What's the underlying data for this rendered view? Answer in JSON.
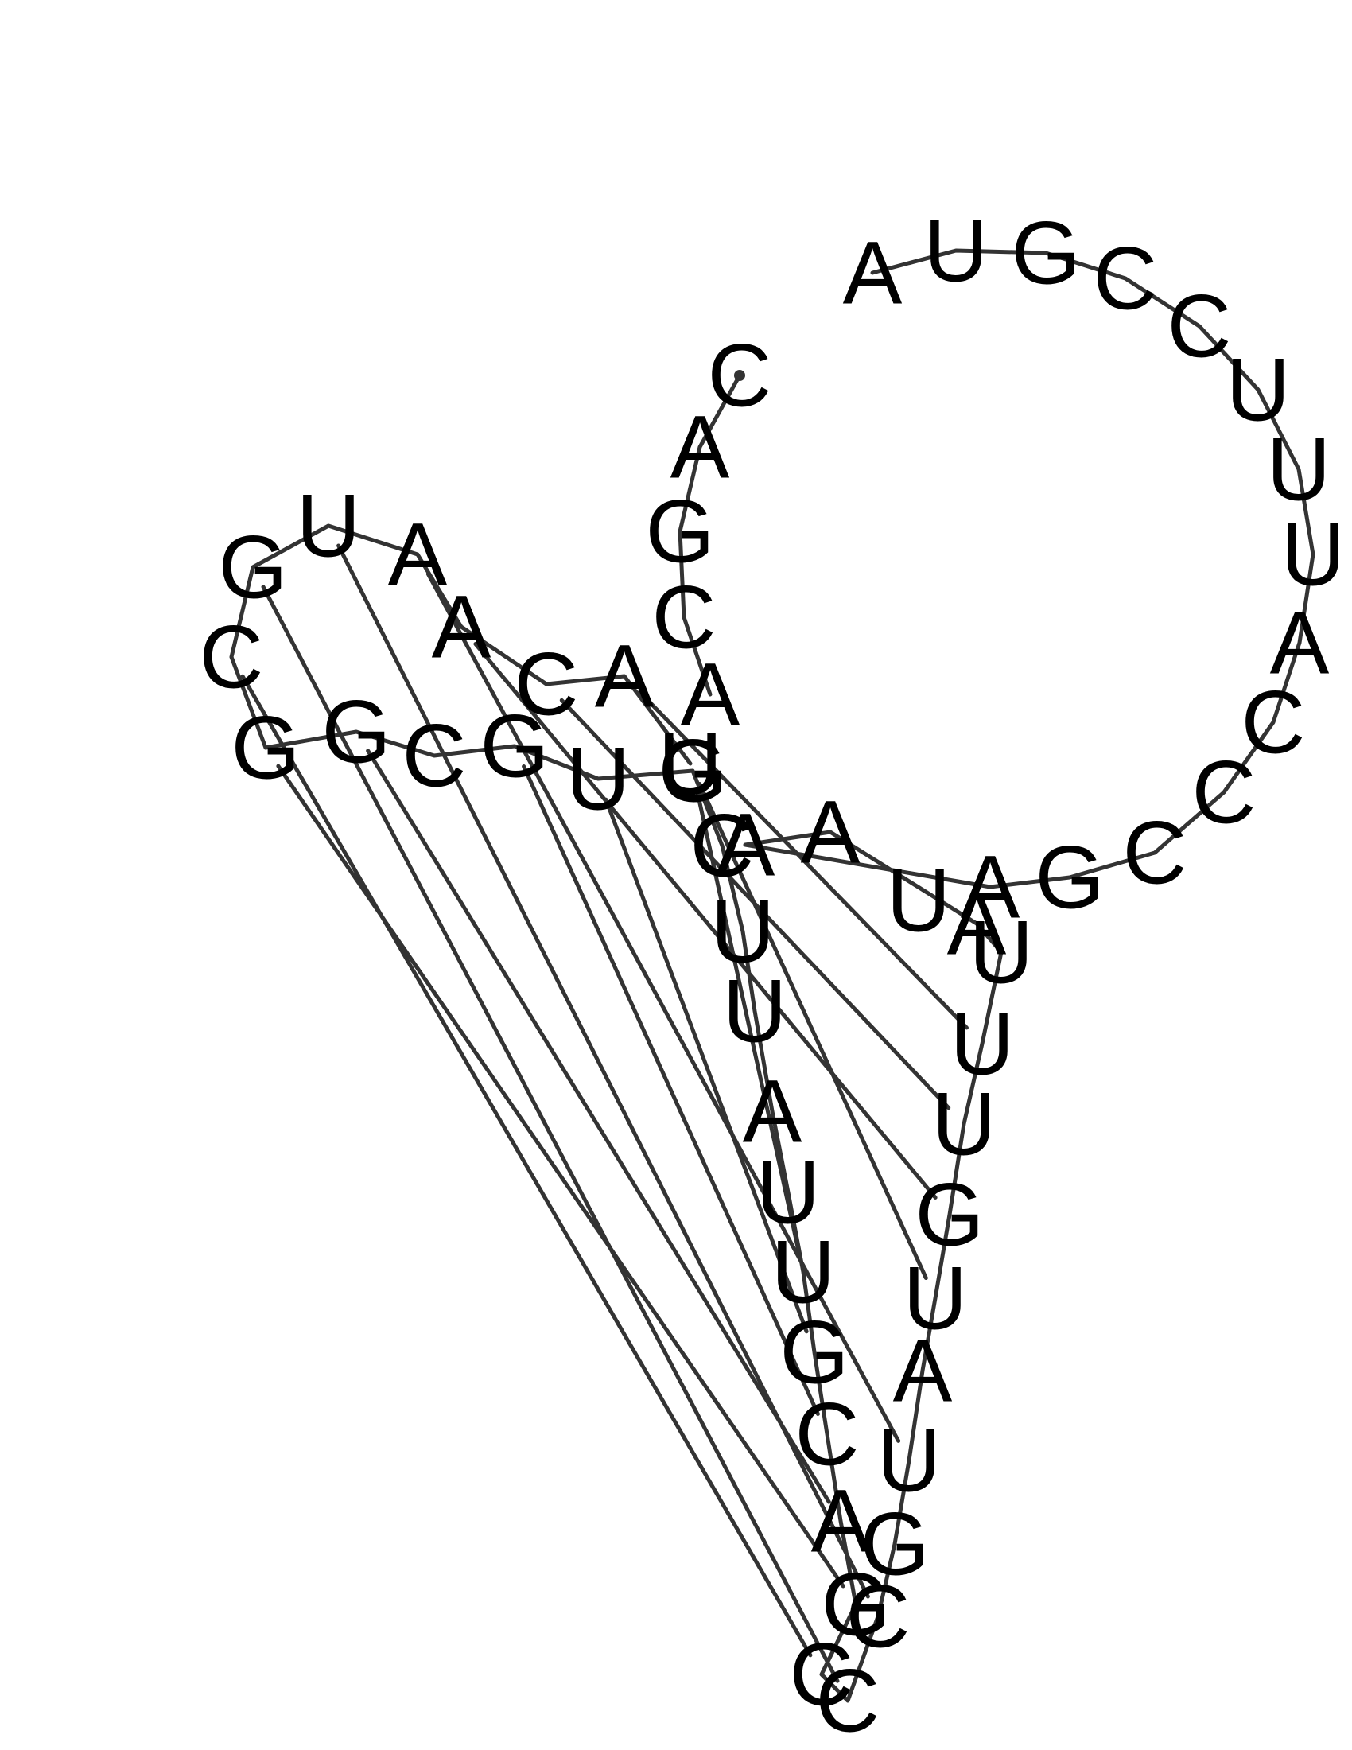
{
  "diagram": {
    "type": "rna-secondary-structure",
    "sequence": "CAGCAACAUAAUAUUUGUAUGCCCGACGUUAUUCGUGCGGCGUAAUGCCUUUACCCGA",
    "nucleotides": [
      "C",
      "A",
      "G",
      "C",
      "A",
      "A",
      "C",
      "A",
      "U",
      "A",
      "A",
      "U",
      "A",
      "U",
      "U",
      "U",
      "G",
      "U",
      "A",
      "U",
      "G",
      "C",
      "C",
      "C",
      "G",
      "A",
      "C",
      "G",
      "U",
      "U",
      "A",
      "U",
      "U",
      "C",
      "G",
      "U",
      "G",
      "C",
      "G",
      "G",
      "C",
      "G",
      "U",
      "A",
      "A",
      "U",
      "G",
      "C",
      "C",
      "U",
      "U",
      "U",
      "A",
      "C",
      "C",
      "C",
      "G",
      "A"
    ],
    "base_pairs": [
      [
        5,
        16
      ],
      [
        6,
        15
      ],
      [
        7,
        14
      ],
      [
        8,
        17
      ],
      [
        19,
        43
      ],
      [
        21,
        42
      ],
      [
        22,
        41
      ],
      [
        23,
        40
      ],
      [
        24,
        39
      ],
      [
        25,
        38
      ],
      [
        26,
        36
      ],
      [
        27,
        35
      ],
      [
        28,
        34
      ]
    ],
    "colors": {
      "backbone": "#333333",
      "base_pair": "#333333",
      "letter": "#000000",
      "background": "#ffffff"
    }
  }
}
